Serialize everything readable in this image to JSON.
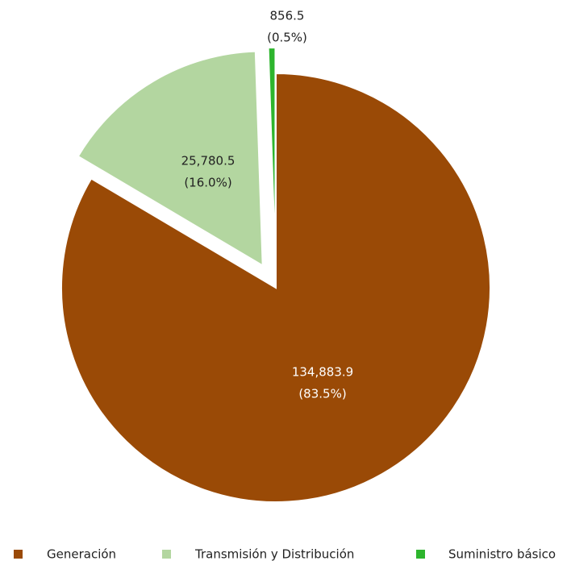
{
  "chart_data": {
    "type": "pie",
    "categories": [
      "Generación",
      "Transmisión y Distribución",
      "Suministro básico"
    ],
    "values": [
      134883.9,
      25780.5,
      856.5
    ],
    "value_labels": [
      "134,883.9",
      "25,780.5",
      "856.5"
    ],
    "percent_labels": [
      "(83.5%)",
      "(16.0%)",
      "(0.5%)"
    ],
    "colors": [
      "#9a4a06",
      "#b3d6a0",
      "#2db52d"
    ],
    "exploded": [
      false,
      true,
      true
    ],
    "legend": "bottom"
  }
}
